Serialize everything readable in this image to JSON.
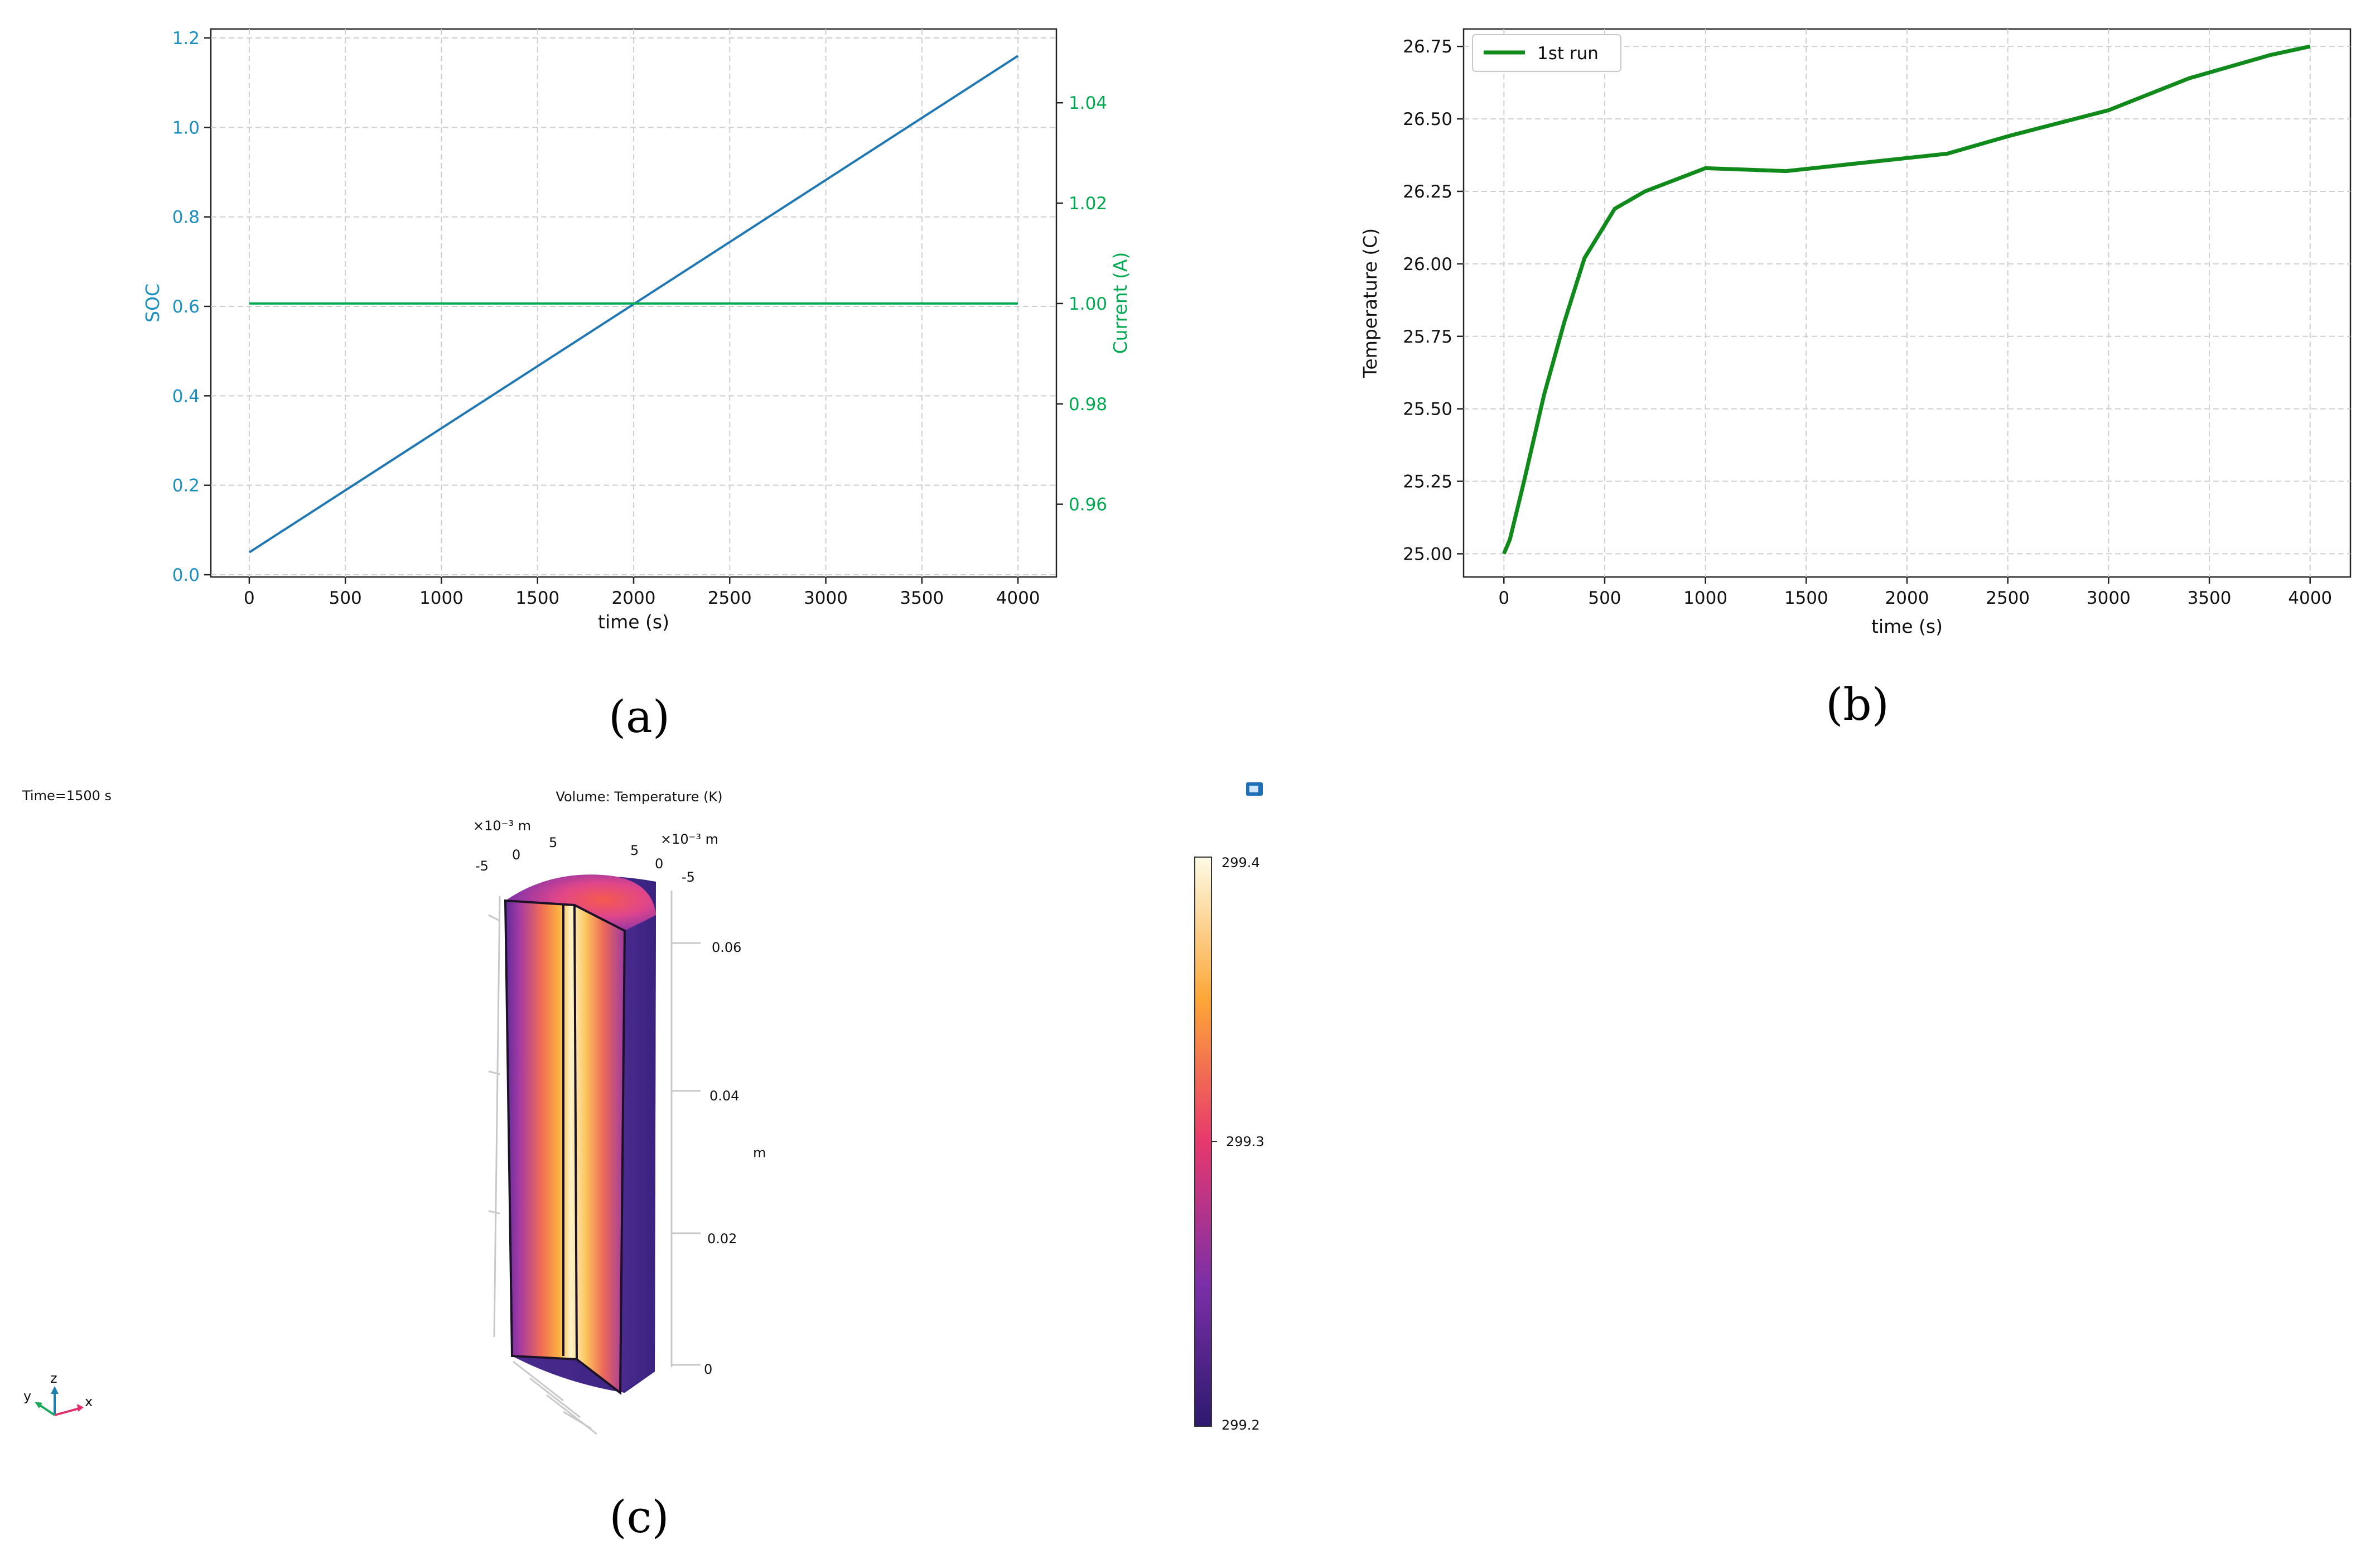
{
  "captions": {
    "a": "(a)",
    "b": "(b)",
    "c": "(c)"
  },
  "colors": {
    "soc": "#1f77b4",
    "soc_axis": "#1a8fc2",
    "current": "#00a84f",
    "temp": "#118a1c"
  },
  "chart_data": [
    {
      "id": "a",
      "type": "line",
      "title": "",
      "xlabel": "time (s)",
      "ylabel": "SOC",
      "y2label": "Current (A)",
      "xlim": [
        -200,
        4200
      ],
      "ylim": [
        -0.005,
        1.22
      ],
      "y2lim": [
        0.9455,
        1.0547
      ],
      "xticks": [
        0,
        500,
        1000,
        1500,
        2000,
        2500,
        3000,
        3500,
        4000
      ],
      "yticks": [
        "0.0",
        "0.2",
        "0.4",
        "0.6",
        "0.8",
        "1.0",
        "1.2"
      ],
      "y2ticks": [
        "0.96",
        "0.98",
        "1.00",
        "1.02",
        "1.04"
      ],
      "grid": true,
      "series": [
        {
          "name": "SOC",
          "axis": "left",
          "x": [
            0,
            4000
          ],
          "y": [
            0.05,
            1.16
          ]
        },
        {
          "name": "Current (A)",
          "axis": "right",
          "x": [
            0,
            4000
          ],
          "y": [
            1.0,
            1.0
          ]
        }
      ]
    },
    {
      "id": "b",
      "type": "line",
      "title": "",
      "xlabel": "time (s)",
      "ylabel": "Temperature (C)",
      "xlim": [
        -200,
        4200
      ],
      "ylim": [
        24.92,
        26.81
      ],
      "xticks": [
        0,
        500,
        1000,
        1500,
        2000,
        2500,
        3000,
        3500,
        4000
      ],
      "yticks": [
        "25.00",
        "25.25",
        "25.50",
        "25.75",
        "26.00",
        "26.25",
        "26.50",
        "26.75"
      ],
      "grid": true,
      "legend": "top-left",
      "series": [
        {
          "name": "1st run",
          "x": [
            0,
            30,
            100,
            200,
            300,
            400,
            550,
            700,
            1000,
            1400,
            1800,
            2200,
            2500,
            3000,
            3400,
            3800,
            4000
          ],
          "y": [
            25.0,
            25.05,
            25.25,
            25.55,
            25.8,
            26.02,
            26.19,
            26.25,
            26.33,
            26.32,
            26.35,
            26.38,
            26.44,
            26.53,
            26.64,
            26.72,
            26.75
          ]
        }
      ]
    }
  ],
  "panel_c": {
    "time_label": "Time=1500 s",
    "title": "Volume: Temperature (K)",
    "unit_left": "×10⁻³ m",
    "unit_right": "×10⁻³ m",
    "xticks_left": [
      "-5",
      "0",
      "5"
    ],
    "xticks_right": [
      "5",
      "0",
      "-5"
    ],
    "zticks": [
      "0.06",
      "0.04",
      "0.02",
      "0"
    ],
    "z_unit": "m",
    "colorbar_max": "299.4",
    "colorbar_mid": "299.3",
    "colorbar_min": "299.2",
    "colorbar_range": [
      299.2,
      299.4
    ],
    "axis_y": "y",
    "axis_z": "z",
    "axis_x": "x"
  }
}
